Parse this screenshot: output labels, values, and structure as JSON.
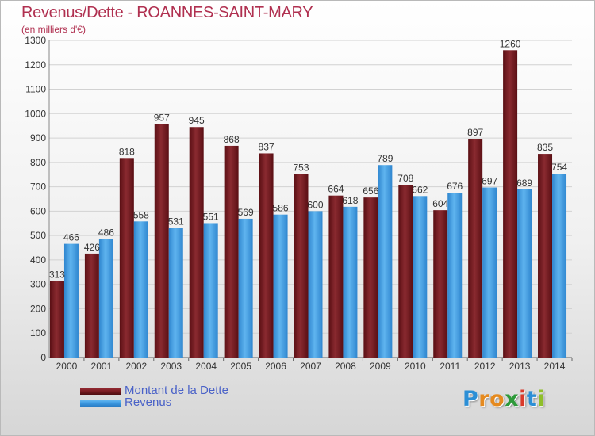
{
  "chart_data": {
    "type": "bar",
    "title": "Revenus/Dette - ROANNES-SAINT-MARY",
    "subtitle": "(en milliers d'€)",
    "categories": [
      "2000",
      "2001",
      "2002",
      "2003",
      "2004",
      "2005",
      "2006",
      "2007",
      "2008",
      "2009",
      "2010",
      "2011",
      "2012",
      "2013",
      "2014"
    ],
    "series": [
      {
        "name": "Montant de la Dette",
        "color": "#7a1c22",
        "values": [
          313,
          426,
          818,
          957,
          945,
          868,
          837,
          753,
          664,
          656,
          708,
          604,
          897,
          1260,
          835
        ]
      },
      {
        "name": "Revenus",
        "color": "#3d9ae2",
        "values": [
          466,
          486,
          558,
          531,
          551,
          569,
          586,
          600,
          618,
          789,
          662,
          676,
          697,
          689,
          754
        ]
      }
    ],
    "ylim": [
      0,
      1300
    ],
    "yticks": [
      0,
      100,
      200,
      300,
      400,
      500,
      600,
      700,
      800,
      900,
      1000,
      1100,
      1200,
      1300
    ],
    "grid": true,
    "legend_position": "bottom-left"
  },
  "logo": {
    "letters": [
      {
        "ch": "P",
        "color": "#2c8fd6"
      },
      {
        "ch": "r",
        "color": "#e58a1f"
      },
      {
        "ch": "o",
        "color": "#e58a1f"
      },
      {
        "ch": "x",
        "color": "#2e9a3a"
      },
      {
        "ch": "i",
        "color": "#d93a2b"
      },
      {
        "ch": "t",
        "color": "#2c8fd6"
      },
      {
        "ch": "i",
        "color": "#8fbf2a"
      }
    ]
  }
}
